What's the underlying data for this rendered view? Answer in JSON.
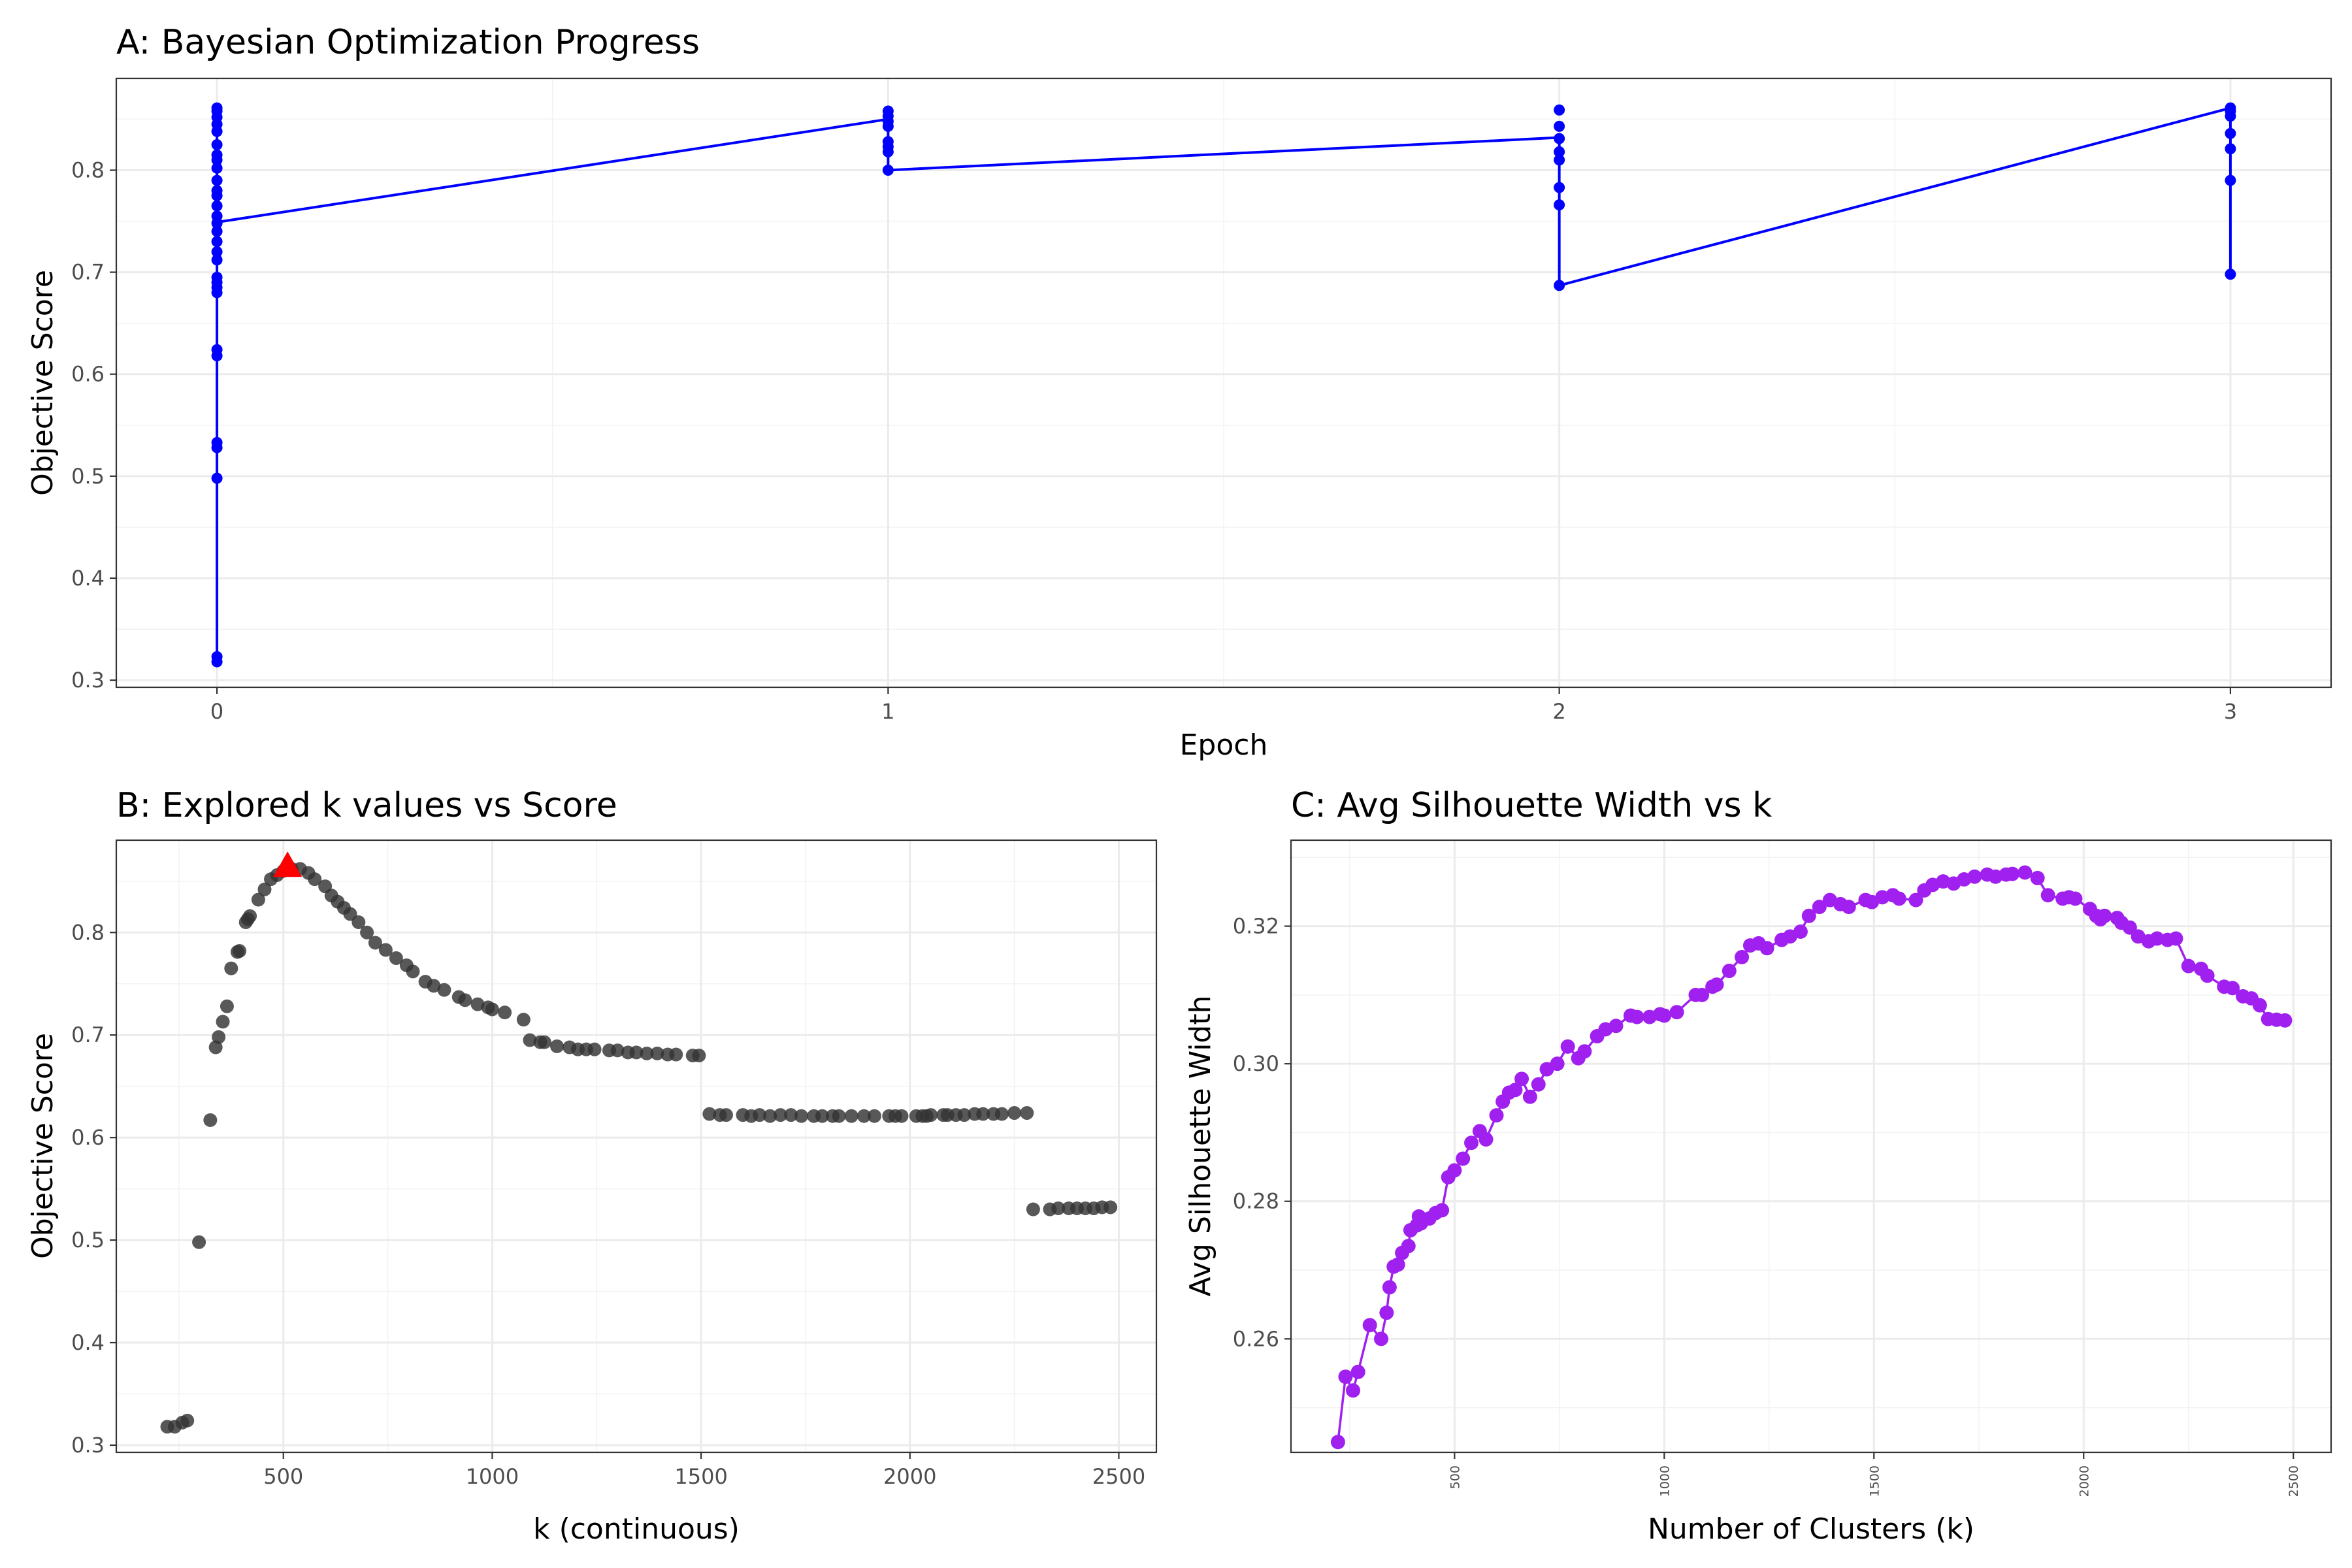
{
  "chart_data": [
    {
      "id": "A",
      "type": "line",
      "title": "A: Bayesian Optimization Progress",
      "xlabel": "Epoch",
      "ylabel": "Objective Score",
      "xlim": [
        -0.15,
        3.15
      ],
      "ylim": [
        0.293,
        0.89
      ],
      "xticks": [
        0,
        1,
        2,
        3
      ],
      "yticks": [
        0.3,
        0.4,
        0.5,
        0.6,
        0.7,
        0.8
      ],
      "grid": true,
      "color": "#0000ff",
      "points": [
        {
          "epoch": 0,
          "scores": [
            0.861,
            0.858,
            0.852,
            0.845,
            0.838,
            0.825,
            0.815,
            0.81,
            0.802,
            0.79,
            0.78,
            0.775,
            0.765,
            0.755,
            0.748,
            0.74,
            0.73,
            0.72,
            0.712,
            0.695,
            0.69,
            0.685,
            0.68,
            0.624,
            0.618,
            0.533,
            0.528,
            0.498,
            0.323,
            0.318
          ]
        },
        {
          "epoch": 1,
          "scores": [
            0.858,
            0.853,
            0.848,
            0.843,
            0.828,
            0.823,
            0.818,
            0.8
          ]
        },
        {
          "epoch": 2,
          "scores": [
            0.859,
            0.843,
            0.831,
            0.818,
            0.81,
            0.783,
            0.766,
            0.687
          ]
        },
        {
          "epoch": 3,
          "scores": [
            0.861,
            0.858,
            0.853,
            0.836,
            0.821,
            0.79,
            0.698
          ]
        }
      ],
      "line": [
        {
          "x": 0,
          "y": 0.318
        },
        {
          "x": 0,
          "y": 0.861
        },
        {
          "x": 0,
          "y": 0.749
        },
        {
          "x": 1,
          "y": 0.85
        },
        {
          "x": 1,
          "y": 0.8
        },
        {
          "x": 2,
          "y": 0.832
        },
        {
          "x": 2,
          "y": 0.687
        },
        {
          "x": 3,
          "y": 0.861
        },
        {
          "x": 3,
          "y": 0.698
        }
      ]
    },
    {
      "id": "B",
      "type": "scatter",
      "title": "B: Explored k values vs Score",
      "xlabel": "k (continuous)",
      "ylabel": "Objective Score",
      "xlim": [
        100,
        2590
      ],
      "ylim": [
        0.293,
        0.89
      ],
      "xticks": [
        500,
        1000,
        1500,
        2000,
        2500
      ],
      "yticks": [
        0.3,
        0.4,
        0.5,
        0.6,
        0.7,
        0.8
      ],
      "grid": true,
      "color": "#333333",
      "best_point": {
        "k": 510,
        "score": 0.865,
        "color": "#ff0000",
        "marker": "triangle"
      },
      "x": [
        222,
        240,
        258,
        270,
        298,
        325,
        338,
        345,
        355,
        365,
        375,
        390,
        395,
        410,
        415,
        420,
        440,
        455,
        470,
        485,
        500,
        520,
        540,
        560,
        575,
        600,
        615,
        630,
        645,
        660,
        680,
        700,
        720,
        745,
        770,
        795,
        810,
        840,
        860,
        885,
        920,
        935,
        965,
        990,
        1000,
        1030,
        1075,
        1090,
        1115,
        1125,
        1155,
        1185,
        1205,
        1225,
        1245,
        1280,
        1300,
        1325,
        1345,
        1370,
        1395,
        1420,
        1440,
        1480,
        1495,
        1520,
        1545,
        1560,
        1600,
        1620,
        1640,
        1665,
        1690,
        1715,
        1740,
        1770,
        1790,
        1815,
        1830,
        1860,
        1890,
        1915,
        1950,
        1965,
        1980,
        2015,
        2030,
        2040,
        2050,
        2080,
        2090,
        2110,
        2130,
        2155,
        2175,
        2200,
        2220,
        2250,
        2280,
        2295,
        2335,
        2355,
        2380,
        2400,
        2420,
        2440,
        2460,
        2480
      ],
      "y": [
        0.318,
        0.318,
        0.322,
        0.324,
        0.498,
        0.617,
        0.688,
        0.698,
        0.713,
        0.728,
        0.765,
        0.781,
        0.782,
        0.81,
        0.813,
        0.816,
        0.832,
        0.842,
        0.852,
        0.856,
        0.86,
        0.862,
        0.862,
        0.858,
        0.852,
        0.845,
        0.836,
        0.83,
        0.824,
        0.818,
        0.81,
        0.8,
        0.79,
        0.783,
        0.775,
        0.768,
        0.762,
        0.752,
        0.748,
        0.744,
        0.737,
        0.734,
        0.73,
        0.727,
        0.725,
        0.722,
        0.715,
        0.695,
        0.693,
        0.693,
        0.689,
        0.688,
        0.686,
        0.686,
        0.686,
        0.685,
        0.685,
        0.683,
        0.683,
        0.682,
        0.682,
        0.681,
        0.681,
        0.68,
        0.68,
        0.623,
        0.622,
        0.622,
        0.622,
        0.621,
        0.622,
        0.621,
        0.622,
        0.622,
        0.621,
        0.621,
        0.621,
        0.621,
        0.621,
        0.621,
        0.621,
        0.621,
        0.621,
        0.621,
        0.621,
        0.621,
        0.621,
        0.621,
        0.622,
        0.622,
        0.622,
        0.622,
        0.622,
        0.623,
        0.623,
        0.623,
        0.623,
        0.624,
        0.624,
        0.53,
        0.53,
        0.531,
        0.531,
        0.531,
        0.531,
        0.531,
        0.532,
        0.532
      ]
    },
    {
      "id": "C",
      "type": "line",
      "title": "C: Avg Silhouette Width vs k",
      "xlabel": "Number of Clusters (k)",
      "ylabel": "Avg Silhouette Width",
      "xlim": [
        110,
        2590
      ],
      "ylim": [
        0.2435,
        0.3325
      ],
      "xticks": [
        500,
        1000,
        1500,
        2000,
        2500
      ],
      "yticks": [
        0.26,
        0.28,
        0.3,
        0.32
      ],
      "grid": true,
      "color": "#a020f0",
      "x": [
        222,
        240,
        258,
        270,
        298,
        325,
        338,
        345,
        355,
        365,
        375,
        390,
        395,
        410,
        415,
        420,
        440,
        455,
        470,
        485,
        500,
        520,
        540,
        560,
        575,
        600,
        615,
        630,
        645,
        660,
        680,
        700,
        720,
        745,
        770,
        795,
        810,
        840,
        860,
        885,
        920,
        935,
        965,
        990,
        1000,
        1030,
        1075,
        1090,
        1115,
        1125,
        1155,
        1185,
        1205,
        1225,
        1245,
        1280,
        1300,
        1325,
        1345,
        1370,
        1395,
        1420,
        1440,
        1480,
        1495,
        1520,
        1545,
        1560,
        1600,
        1620,
        1640,
        1665,
        1690,
        1715,
        1740,
        1770,
        1790,
        1815,
        1830,
        1860,
        1890,
        1915,
        1950,
        1965,
        1980,
        2015,
        2030,
        2040,
        2050,
        2080,
        2090,
        2110,
        2130,
        2155,
        2175,
        2200,
        2220,
        2250,
        2280,
        2295,
        2335,
        2355,
        2380,
        2400,
        2420,
        2440,
        2460,
        2480
      ],
      "y": [
        0.245,
        0.2545,
        0.2525,
        0.2552,
        0.262,
        0.26,
        0.2638,
        0.2675,
        0.2705,
        0.2708,
        0.2725,
        0.2735,
        0.2758,
        0.2765,
        0.2778,
        0.2768,
        0.2775,
        0.2783,
        0.2787,
        0.2835,
        0.2845,
        0.2862,
        0.2885,
        0.2902,
        0.289,
        0.2925,
        0.2945,
        0.2958,
        0.2962,
        0.2978,
        0.2952,
        0.297,
        0.2992,
        0.3,
        0.3025,
        0.3008,
        0.3018,
        0.304,
        0.305,
        0.3055,
        0.307,
        0.3068,
        0.3068,
        0.3072,
        0.307,
        0.3075,
        0.31,
        0.31,
        0.3112,
        0.3115,
        0.3135,
        0.3155,
        0.3172,
        0.3175,
        0.3168,
        0.318,
        0.3185,
        0.3192,
        0.3215,
        0.3228,
        0.3238,
        0.3232,
        0.3228,
        0.3238,
        0.3235,
        0.3242,
        0.3245,
        0.324,
        0.3238,
        0.3252,
        0.326,
        0.3265,
        0.3262,
        0.3268,
        0.3272,
        0.3275,
        0.3272,
        0.3275,
        0.3276,
        0.3278,
        0.327,
        0.3245,
        0.324,
        0.3242,
        0.324,
        0.3225,
        0.3215,
        0.321,
        0.3215,
        0.3212,
        0.3205,
        0.3198,
        0.3185,
        0.3178,
        0.3182,
        0.318,
        0.3182,
        0.3142,
        0.3138,
        0.3128,
        0.3112,
        0.311,
        0.3098,
        0.3095,
        0.3085,
        0.3065,
        0.3064,
        0.3063
      ]
    }
  ]
}
